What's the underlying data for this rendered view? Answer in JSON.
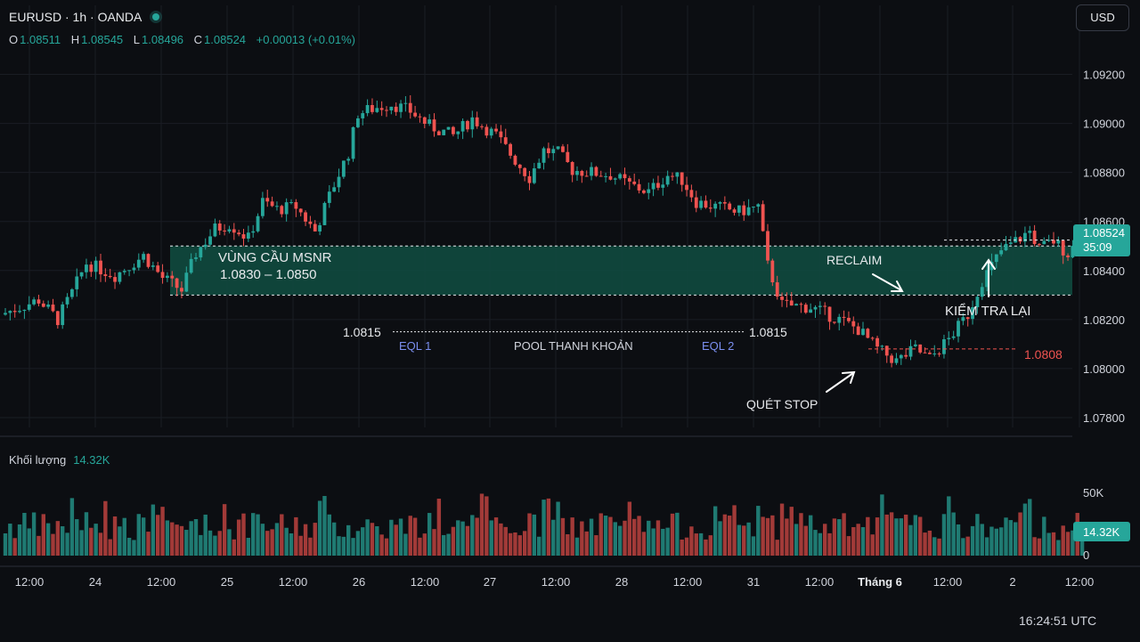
{
  "header": {
    "symbol_title": "EURUSD · 1h · OANDA",
    "ohlc": {
      "o_label": "O",
      "o_value": "1.08511",
      "h_label": "H",
      "h_value": "1.08545",
      "l_label": "L",
      "l_value": "1.08496",
      "c_label": "C",
      "c_value": "1.08524",
      "change": "+0.00013 (+0.01%)"
    }
  },
  "currency_button": "USD",
  "volume_header": {
    "label": "Khối lượng",
    "value": "14.32K"
  },
  "time_readout": "16:24:51 UTC",
  "colors": {
    "bull": "#26a69a",
    "bear": "#ef5350",
    "bull_volume": "#1f7a72",
    "bear_volume": "#a23a38",
    "zone_fill": "#0f4a3f",
    "background": "#0c0e12",
    "grid": "#1a1d24",
    "white": "#e8eaed",
    "eql_label": "#7b8ff0",
    "stop_line": "#ef5350"
  },
  "chart_data": [
    {
      "type": "candlestick",
      "symbol": "EURUSD",
      "interval": "1h",
      "y_axis": {
        "ticks": [
          "1.09200",
          "1.09000",
          "1.08800",
          "1.08600",
          "1.08400",
          "1.08200",
          "1.08000",
          "1.07800"
        ],
        "range": [
          1.0776,
          1.093
        ]
      },
      "x_axis": {
        "ticks": [
          "12:00",
          "24",
          "12:00",
          "25",
          "12:00",
          "26",
          "12:00",
          "27",
          "12:00",
          "28",
          "12:00",
          "31",
          "12:00",
          "Tháng 6",
          "12:00",
          "2",
          "12:00"
        ]
      },
      "last_price": {
        "value": "1.08524",
        "countdown": "35:09"
      },
      "grid": true,
      "path_anchors": [
        [
          0,
          1.0822
        ],
        [
          8,
          1.0828
        ],
        [
          12,
          1.082
        ],
        [
          15,
          1.0831
        ],
        [
          18,
          1.0843
        ],
        [
          24,
          1.0838
        ],
        [
          30,
          1.0846
        ],
        [
          34,
          1.0837
        ],
        [
          38,
          1.0832
        ],
        [
          41,
          1.0847
        ],
        [
          45,
          1.0857
        ],
        [
          48,
          1.0859
        ],
        [
          52,
          1.0853
        ],
        [
          55,
          1.0868
        ],
        [
          58,
          1.0865
        ],
        [
          62,
          1.0866
        ],
        [
          66,
          1.0856
        ],
        [
          70,
          1.0875
        ],
        [
          73,
          1.0888
        ],
        [
          75,
          1.0904
        ],
        [
          78,
          1.0906
        ],
        [
          82,
          1.0908
        ],
        [
          86,
          1.0905
        ],
        [
          90,
          1.0899
        ],
        [
          95,
          1.0895
        ],
        [
          99,
          1.0902
        ],
        [
          104,
          1.0895
        ],
        [
          108,
          1.0885
        ],
        [
          111,
          1.0878
        ],
        [
          114,
          1.0889
        ],
        [
          117,
          1.0888
        ],
        [
          120,
          1.0881
        ],
        [
          124,
          1.088
        ],
        [
          128,
          1.0879
        ],
        [
          132,
          1.0875
        ],
        [
          136,
          1.0872
        ],
        [
          140,
          1.0879
        ],
        [
          143,
          1.0877
        ],
        [
          146,
          1.0868
        ],
        [
          150,
          1.0866
        ],
        [
          155,
          1.0864
        ],
        [
          159,
          1.0866
        ],
        [
          161,
          1.0842
        ],
        [
          164,
          1.0826
        ],
        [
          170,
          1.0825
        ],
        [
          176,
          1.082
        ],
        [
          180,
          1.0816
        ],
        [
          184,
          1.0808
        ],
        [
          188,
          1.0803
        ],
        [
          192,
          1.0808
        ],
        [
          195,
          1.0804
        ],
        [
          199,
          1.0812
        ],
        [
          203,
          1.0822
        ],
        [
          206,
          1.0836
        ],
        [
          210,
          1.0848
        ],
        [
          213,
          1.0852
        ],
        [
          216,
          1.0856
        ],
        [
          218,
          1.0849
        ],
        [
          221,
          1.0852
        ],
        [
          224,
          1.0847
        ],
        [
          226,
          1.0852
        ]
      ],
      "volume": {
        "axis_ticks": [
          "50K",
          "0"
        ],
        "max": 50000,
        "last": "14.32K"
      }
    }
  ],
  "annotations": {
    "zone": {
      "title": "VÙNG CẦU MSNR",
      "range_text": "1.0830 – 1.0850",
      "low": 1.083,
      "high": 1.085
    },
    "liquidity_line": {
      "left_label": "1.0815",
      "right_label": "1.0815",
      "price": 1.0815,
      "eql1": "EQL 1",
      "eql2": "EQL 2",
      "pool": "POOL THANH KHOẢN"
    },
    "stop_level": {
      "label": "1.0808",
      "price": 1.0808
    },
    "reclaim": "RECLAIM",
    "retest": "KIỂM TRA LẠI",
    "sweep": "QUÉT STOP"
  }
}
